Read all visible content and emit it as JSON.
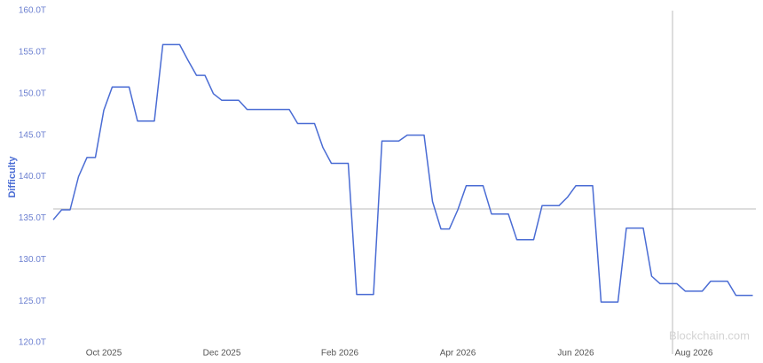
{
  "chart_data": {
    "type": "line",
    "y_label": "Difficulty",
    "watermark": "Blockchain.com",
    "categories": [
      null,
      null,
      null,
      null,
      null,
      null,
      "Oct 2025",
      null,
      null,
      null,
      null,
      null,
      null,
      null,
      null,
      null,
      null,
      null,
      null,
      null,
      "Dec 2025",
      null,
      null,
      null,
      null,
      null,
      null,
      null,
      null,
      null,
      null,
      null,
      null,
      null,
      "Feb 2026",
      null,
      null,
      null,
      null,
      null,
      null,
      null,
      null,
      null,
      null,
      null,
      null,
      null,
      "Apr 2026",
      null,
      null,
      null,
      null,
      null,
      null,
      null,
      null,
      null,
      null,
      null,
      null,
      null,
      "Jun 2026",
      null,
      null,
      null,
      null,
      null,
      null,
      null,
      null,
      null,
      null,
      null,
      null,
      null,
      "Aug 2026",
      null,
      null,
      null,
      null,
      null,
      null,
      null
    ],
    "series": [
      {
        "color": "#4a6cd4",
        "values": [
          134.8,
          136.0,
          136.0,
          140.0,
          142.3,
          142.3,
          148.0,
          150.8,
          150.8,
          150.8,
          146.7,
          146.7,
          146.7,
          155.9,
          155.9,
          155.9,
          154.0,
          152.2,
          152.2,
          150.0,
          149.2,
          149.2,
          149.2,
          148.1,
          148.1,
          148.1,
          148.1,
          148.1,
          148.1,
          146.4,
          146.4,
          146.4,
          143.5,
          141.6,
          141.6,
          141.6,
          125.8,
          125.8,
          125.8,
          144.3,
          144.3,
          144.3,
          145.0,
          145.0,
          145.0,
          137.0,
          133.7,
          133.7,
          136.0,
          138.9,
          138.9,
          138.9,
          135.5,
          135.5,
          135.5,
          132.4,
          132.4,
          132.4,
          136.5,
          136.5,
          136.5,
          137.5,
          138.9,
          138.9,
          138.9,
          124.9,
          124.9,
          124.9,
          133.8,
          133.8,
          133.8,
          128.0,
          127.1,
          127.1,
          127.1,
          126.2,
          126.2,
          126.2,
          127.4,
          127.4,
          127.4,
          125.7,
          125.7,
          125.7
        ]
      }
    ],
    "ylim": [
      120,
      160
    ],
    "yticks": [
      {
        "value": 120,
        "label": "120.0T"
      },
      {
        "value": 125,
        "label": "125.0T"
      },
      {
        "value": 130,
        "label": "130.0T"
      },
      {
        "value": 135,
        "label": "135.0T"
      },
      {
        "value": 140,
        "label": "140.0T"
      },
      {
        "value": 145,
        "label": "145.0T"
      },
      {
        "value": 150,
        "label": "150.0T"
      },
      {
        "value": 155,
        "label": "155.0T"
      },
      {
        "value": 160,
        "label": "160.0T"
      }
    ]
  }
}
